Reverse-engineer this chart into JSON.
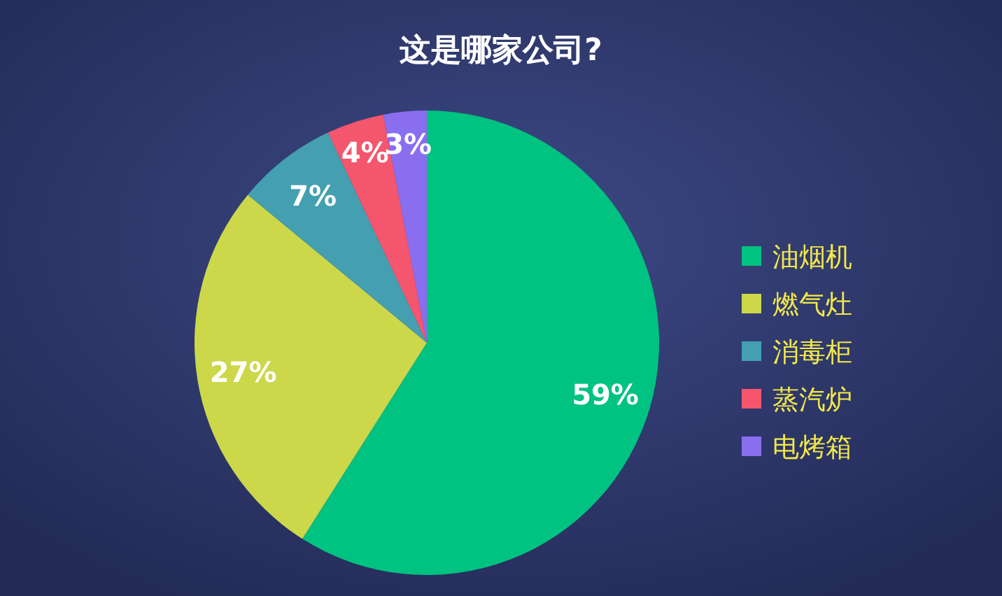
{
  "chart_data": {
    "type": "pie",
    "title": "这是哪家公司?",
    "categories": [
      "油烟机",
      "燃气灶",
      "消毒柜",
      "蒸汽炉",
      "电烤箱"
    ],
    "values": [
      59,
      27,
      7,
      4,
      3
    ],
    "colors": [
      "#00c281",
      "#ccd84a",
      "#44a0b0",
      "#f4566e",
      "#8a6ef0"
    ],
    "value_labels": [
      "59%",
      "27%",
      "7%",
      "4%",
      "3%"
    ],
    "legend": "right"
  }
}
